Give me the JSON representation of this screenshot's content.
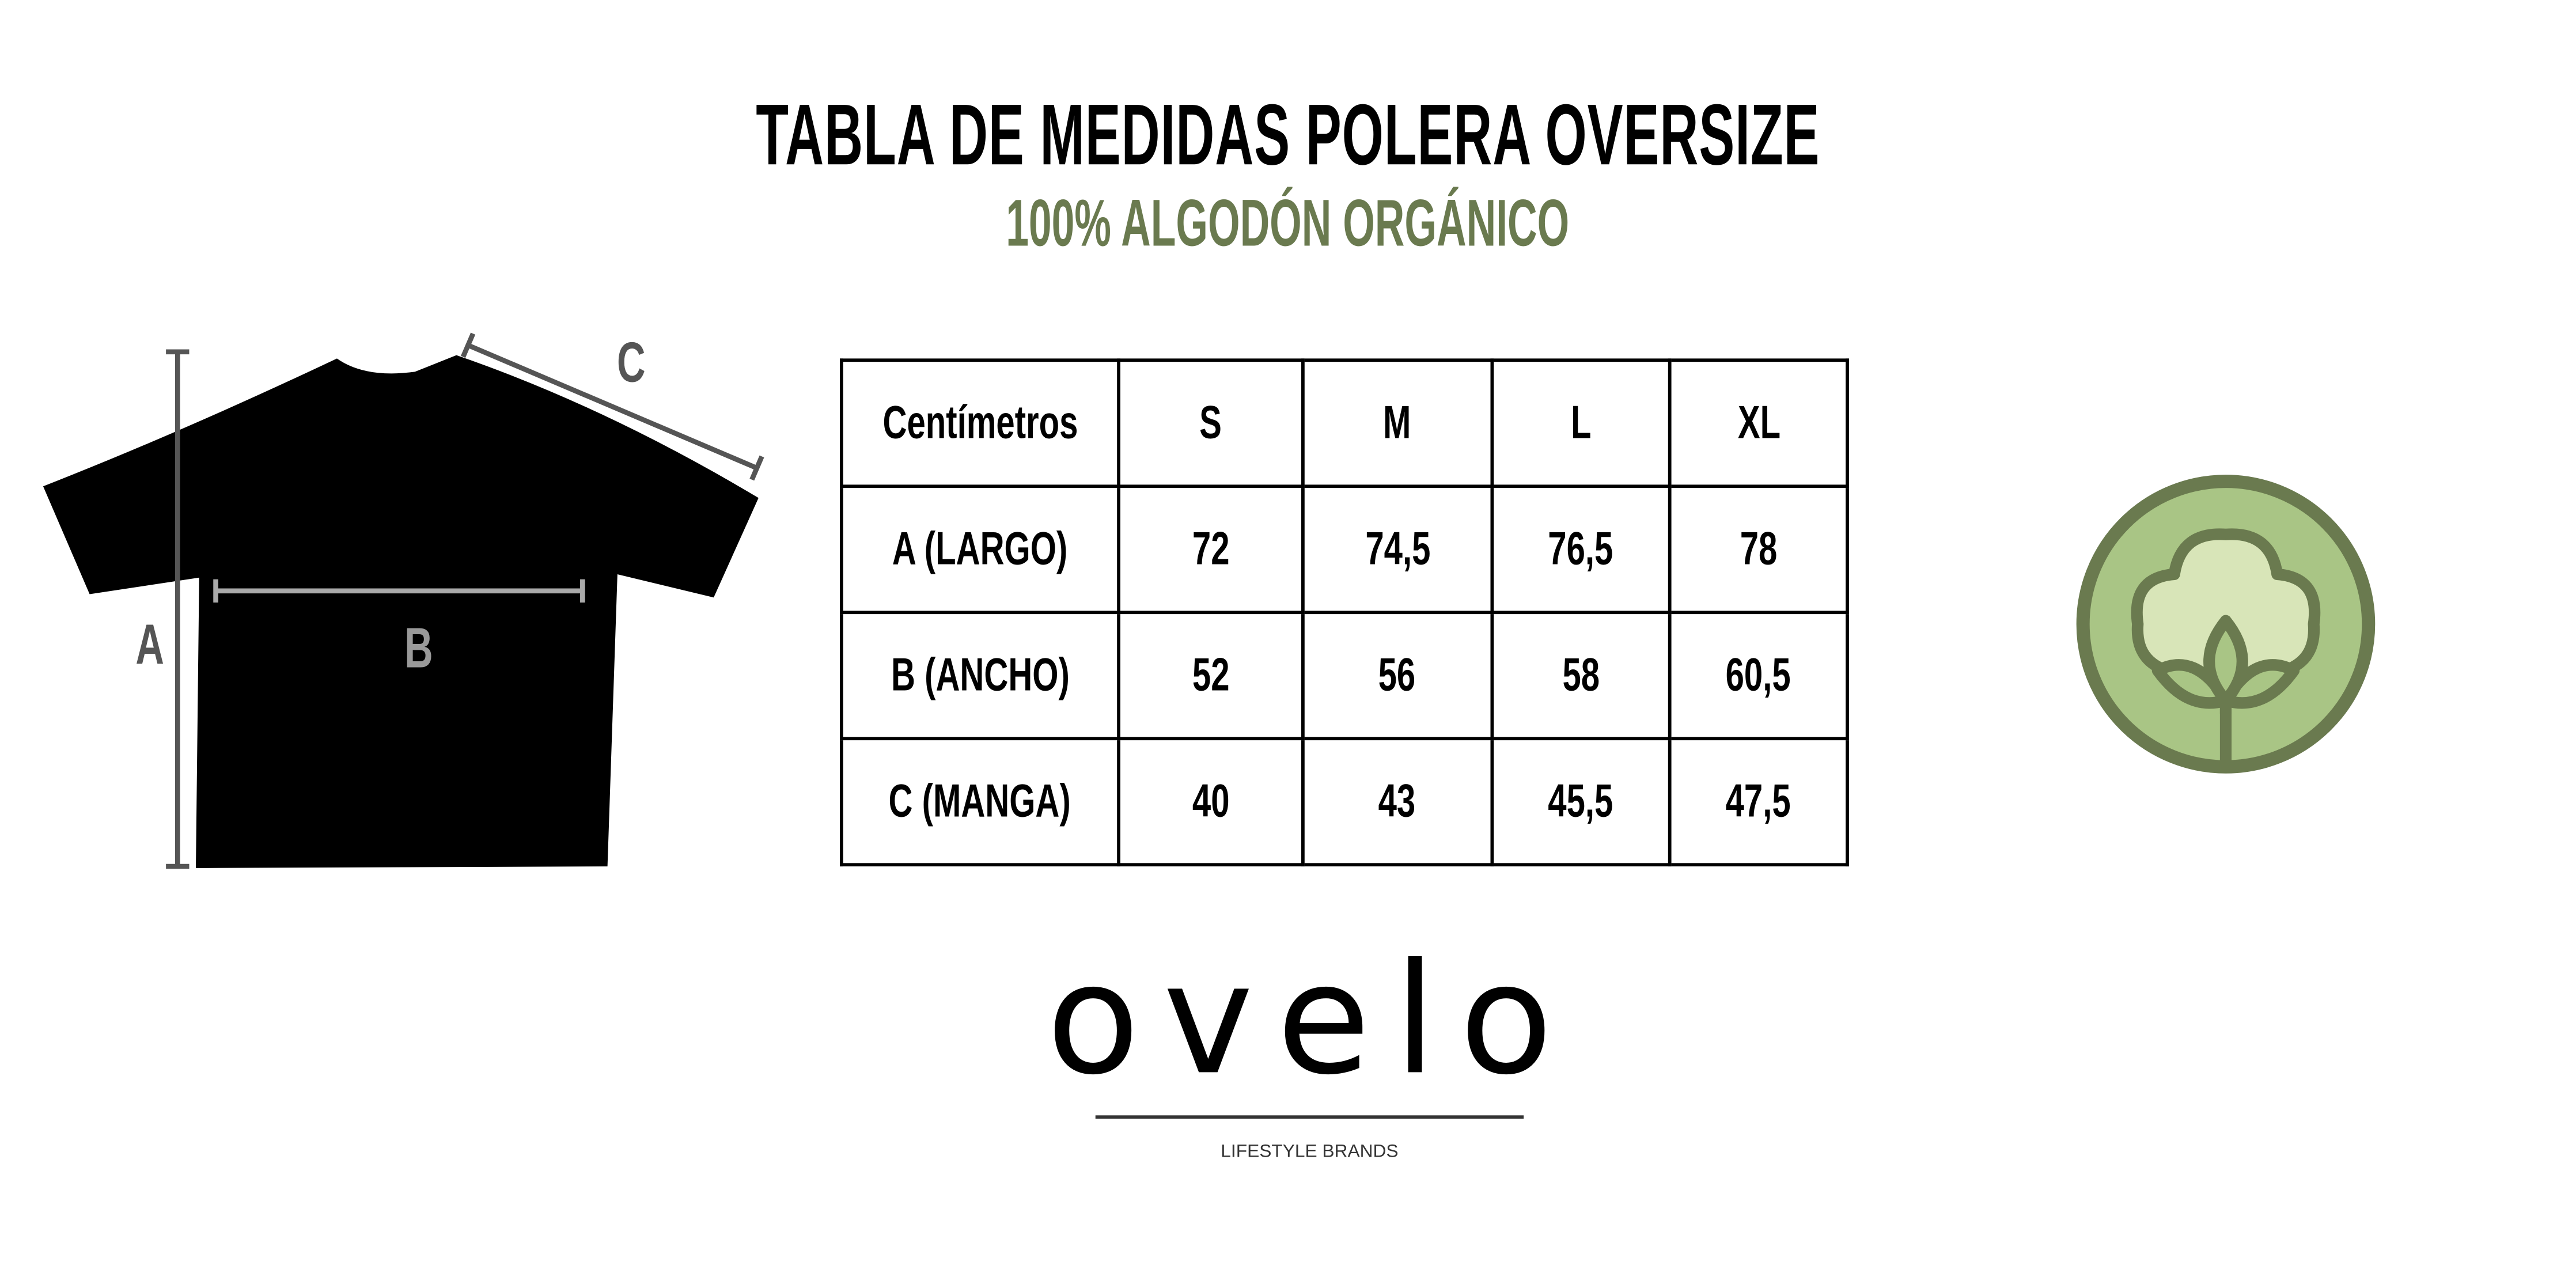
{
  "header": {
    "title": "TABLA DE MEDIDAS POLERA OVERSIZE",
    "subtitle": "100% ALGODÓN ORGÁNICO"
  },
  "diagram": {
    "labels": {
      "a": "A",
      "b": "B",
      "c": "C"
    },
    "shirt_color": "#000000",
    "measure_line_color": "#555555"
  },
  "table": {
    "header": [
      "Centímetros",
      "S",
      "M",
      "L",
      "XL"
    ],
    "rows": [
      [
        "A (LARGO)",
        "72",
        "74,5",
        "76,5",
        "78"
      ],
      [
        "B (ANCHO)",
        "52",
        "56",
        "58",
        "60,5"
      ],
      [
        "C (MANGA)",
        "40",
        "43",
        "45,5",
        "47,5"
      ]
    ]
  },
  "badge": {
    "icon": "cotton-icon",
    "fill": "#a9c585",
    "stroke": "#6a7a4f",
    "inner": "#d8e5b8"
  },
  "logo": {
    "word": "ovelo",
    "tagline": "LIFESTYLE BRANDS"
  },
  "colors": {
    "accent": "#6a7a4f"
  }
}
